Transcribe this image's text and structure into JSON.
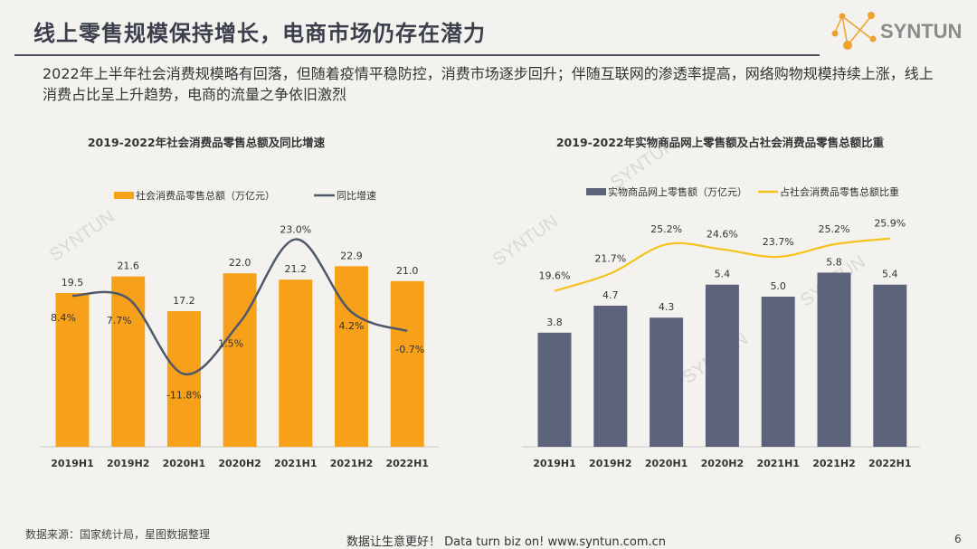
{
  "header": {
    "title": "线上零售规模保持增长，电商市场仍存在潜力",
    "description": "2022年上半年社会消费规模略有回落，但随着疫情平稳防控，消费市场逐步回升；伴随互联网的渗透率提高，网络购物规模持续上涨，线上消费占比呈上升趋势，电商的流量之争依旧激烈",
    "logo_text": "SYNTUN"
  },
  "watermark": "SYNTUN",
  "colors": {
    "orange": "#f7a11a",
    "dark_line": "#4f586b",
    "slate_bar": "#5b6279",
    "yellow_line": "#f5c31c",
    "accent": "#f0a030"
  },
  "chart_data": [
    {
      "type": "bar+line",
      "title": "2019-2022年社会消费品零售总额及同比增速",
      "categories": [
        "2019H1",
        "2019H2",
        "2020H1",
        "2020H2",
        "2021H1",
        "2021H2",
        "2022H1"
      ],
      "series": [
        {
          "name": "社会消费品零售总额（万亿元）",
          "type": "bar",
          "values": [
            19.5,
            21.6,
            17.2,
            22.0,
            21.2,
            22.9,
            21.0
          ],
          "labels": [
            "19.5",
            "21.6",
            "17.2",
            "22.0",
            "21.2",
            "22.9",
            "21.0"
          ]
        },
        {
          "name": "同比增速",
          "type": "line",
          "smooth": true,
          "values": [
            8.4,
            7.7,
            -11.8,
            1.5,
            23.0,
            4.2,
            -0.7
          ],
          "labels": [
            "8.4%",
            "7.7%",
            "-11.8%",
            "1.5%",
            "23.0%",
            "4.2%",
            "-0.7%"
          ]
        }
      ],
      "legend": "top",
      "grid": false
    },
    {
      "type": "bar+line",
      "title": "2019-2022年实物商品网上零售额及占社会消费品零售总额比重",
      "categories": [
        "2019H1",
        "2019H2",
        "2020H1",
        "2020H2",
        "2021H1",
        "2021H2",
        "2022H1"
      ],
      "series": [
        {
          "name": "实物商品网上零售额（万亿元）",
          "type": "bar",
          "values": [
            3.8,
            4.7,
            4.3,
            5.4,
            5.0,
            5.8,
            5.4
          ],
          "labels": [
            "3.8",
            "4.7",
            "4.3",
            "5.4",
            "5.0",
            "5.8",
            "5.4"
          ]
        },
        {
          "name": "占社会消费品零售总额比重",
          "type": "line",
          "smooth": true,
          "values": [
            19.6,
            21.7,
            25.2,
            24.6,
            23.7,
            25.2,
            25.9
          ],
          "labels": [
            "19.6%",
            "21.7%",
            "25.2%",
            "24.6%",
            "23.7%",
            "25.2%",
            "25.9%"
          ]
        }
      ],
      "legend": "top",
      "grid": false
    }
  ],
  "footer": {
    "source": "数据来源：国家统计局，星图数据整理",
    "slogan": "数据让生意更好！ Data turn biz on!  www.syntun.com.cn",
    "page": "6"
  }
}
